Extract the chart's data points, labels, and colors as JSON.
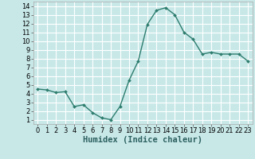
{
  "x": [
    0,
    1,
    2,
    3,
    4,
    5,
    6,
    7,
    8,
    9,
    10,
    11,
    12,
    13,
    14,
    15,
    16,
    17,
    18,
    19,
    20,
    21,
    22,
    23
  ],
  "y": [
    4.5,
    4.4,
    4.1,
    4.2,
    2.5,
    2.7,
    1.8,
    1.2,
    1.0,
    2.5,
    5.5,
    7.7,
    11.9,
    13.5,
    13.8,
    13.0,
    11.0,
    10.2,
    8.5,
    8.7,
    8.5,
    8.5,
    8.5,
    7.7
  ],
  "line_color": "#2d7d6e",
  "marker": "D",
  "marker_size": 2.0,
  "bg_color": "#c8e8e8",
  "grid_color": "#b0d8d8",
  "xlabel": "Humidex (Indice chaleur)",
  "xlim": [
    -0.5,
    23.5
  ],
  "ylim": [
    0.5,
    14.5
  ],
  "yticks": [
    1,
    2,
    3,
    4,
    5,
    6,
    7,
    8,
    9,
    10,
    11,
    12,
    13,
    14
  ],
  "xticks": [
    0,
    1,
    2,
    3,
    4,
    5,
    6,
    7,
    8,
    9,
    10,
    11,
    12,
    13,
    14,
    15,
    16,
    17,
    18,
    19,
    20,
    21,
    22,
    23
  ],
  "xlabel_fontsize": 7.5,
  "tick_fontsize": 6.0,
  "line_width": 1.0
}
